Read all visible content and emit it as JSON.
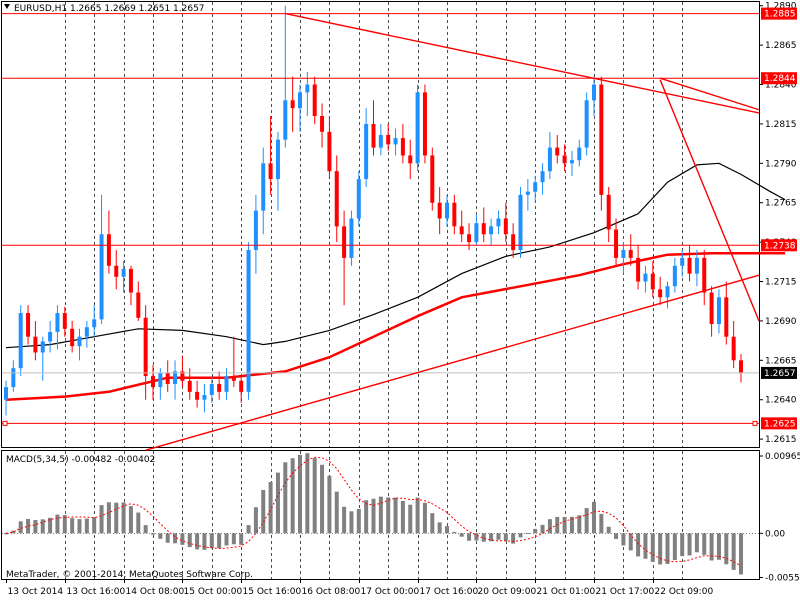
{
  "chart_data": {
    "type": "candlestick",
    "platform": "MetaTrader",
    "copyright": "MetaTrader, © 2001-2014, MetaQuotes Software Corp.",
    "price_panel": {
      "symbol_line": "EURUSD,H1  1.2665 1.2669 1.2651 1.2657",
      "ylim": [
        1.261,
        1.2893
      ],
      "y_ticks": [
        {
          "value": 1.289,
          "label": "1.2890"
        },
        {
          "value": 1.2865,
          "label": "1.2865"
        },
        {
          "value": 1.284,
          "label": "1.2840"
        },
        {
          "value": 1.2815,
          "label": "1.2815"
        },
        {
          "value": 1.279,
          "label": "1.2790"
        },
        {
          "value": 1.2765,
          "label": "1.2765"
        },
        {
          "value": 1.274,
          "label": "1.2740"
        },
        {
          "value": 1.2715,
          "label": "1.2715"
        },
        {
          "value": 1.269,
          "label": "1.2690"
        },
        {
          "value": 1.2665,
          "label": "1.2665"
        },
        {
          "value": 1.264,
          "label": "1.2640"
        },
        {
          "value": 1.2615,
          "label": "1.2615"
        }
      ],
      "horizontal_lines": [
        {
          "value": 1.2885,
          "label": "1.2885"
        },
        {
          "value": 1.2844,
          "label": "1.2844"
        },
        {
          "value": 1.2738,
          "label": "1.2738"
        },
        {
          "value": 1.2625,
          "label": "1.2625"
        }
      ],
      "current_price": {
        "value": 1.2657,
        "label": "1.2657"
      },
      "trend_lines": [
        {
          "from": [
            38,
            1.2885
          ],
          "to": [
            123,
            1.2822
          ]
        },
        {
          "from": [
            89,
            1.2844
          ],
          "to": [
            123,
            1.2824
          ]
        },
        {
          "from": [
            89,
            1.2843
          ],
          "to": [
            123,
            1.269
          ]
        },
        {
          "from": [
            19,
            1.2608
          ],
          "to": [
            123,
            1.2719
          ]
        }
      ],
      "moving_averages": [
        {
          "name": "",
          "color": "#000000",
          "width": 1.2,
          "points": [
            [
              0,
              1.2673
            ],
            [
              6,
              1.2675
            ],
            [
              12,
              1.268
            ],
            [
              18,
              1.2685
            ],
            [
              24,
              1.2684
            ],
            [
              30,
              1.268
            ],
            [
              35,
              1.2675
            ],
            [
              38,
              1.2677
            ],
            [
              44,
              1.2684
            ],
            [
              50,
              1.2694
            ],
            [
              56,
              1.2705
            ],
            [
              62,
              1.272
            ],
            [
              68,
              1.2731
            ],
            [
              74,
              1.2737
            ],
            [
              80,
              1.2746
            ],
            [
              86,
              1.2758
            ],
            [
              90,
              1.2778
            ],
            [
              94,
              1.2789
            ],
            [
              97,
              1.279
            ],
            [
              100,
              1.2783
            ],
            [
              104,
              1.2772
            ],
            [
              106,
              1.2767
            ]
          ]
        },
        {
          "name": "",
          "color": "#ff0000",
          "width": 2.5,
          "points": [
            [
              0,
              1.264
            ],
            [
              8,
              1.2642
            ],
            [
              14,
              1.2645
            ],
            [
              22,
              1.2654
            ],
            [
              30,
              1.2654
            ],
            [
              38,
              1.2658
            ],
            [
              44,
              1.2667
            ],
            [
              50,
              1.268
            ],
            [
              56,
              1.2693
            ],
            [
              62,
              1.2705
            ],
            [
              70,
              1.2712
            ],
            [
              78,
              1.2719
            ],
            [
              84,
              1.2726
            ],
            [
              90,
              1.2732
            ],
            [
              96,
              1.2733
            ],
            [
              102,
              1.2733
            ],
            [
              106,
              1.2733
            ]
          ]
        }
      ],
      "ohlc": [
        [
          1.264,
          1.2652,
          1.263,
          1.2648
        ],
        [
          1.2648,
          1.2665,
          1.2645,
          1.266
        ],
        [
          1.266,
          1.27,
          1.2655,
          1.2695
        ],
        [
          1.2695,
          1.27,
          1.2675,
          1.268
        ],
        [
          1.268,
          1.269,
          1.2665,
          1.267
        ],
        [
          1.267,
          1.268,
          1.2652,
          1.2677
        ],
        [
          1.2677,
          1.269,
          1.267,
          1.2683
        ],
        [
          1.2683,
          1.27,
          1.2672,
          1.2695
        ],
        [
          1.2695,
          1.2699,
          1.268,
          1.2685
        ],
        [
          1.2685,
          1.269,
          1.267,
          1.2674
        ],
        [
          1.2674,
          1.2685,
          1.2665,
          1.268
        ],
        [
          1.268,
          1.269,
          1.2673,
          1.2686
        ],
        [
          1.2686,
          1.27,
          1.268,
          1.2691
        ],
        [
          1.2691,
          1.277,
          1.2688,
          1.2745
        ],
        [
          1.2745,
          1.276,
          1.272,
          1.2725
        ],
        [
          1.2725,
          1.2735,
          1.271,
          1.2718
        ],
        [
          1.2718,
          1.2728,
          1.2708,
          1.2723
        ],
        [
          1.2723,
          1.2725,
          1.27,
          1.2708
        ],
        [
          1.2708,
          1.2715,
          1.269,
          1.2692
        ],
        [
          1.2692,
          1.27,
          1.264,
          1.2655
        ],
        [
          1.2655,
          1.2662,
          1.264,
          1.2648
        ],
        [
          1.2648,
          1.266,
          1.264,
          1.2657
        ],
        [
          1.2657,
          1.2665,
          1.2645,
          1.265
        ],
        [
          1.265,
          1.2665,
          1.264,
          1.2658
        ],
        [
          1.2658,
          1.2668,
          1.2648,
          1.2652
        ],
        [
          1.2652,
          1.266,
          1.264,
          1.2645
        ],
        [
          1.2645,
          1.2652,
          1.2635,
          1.264
        ],
        [
          1.264,
          1.265,
          1.2632,
          1.2643
        ],
        [
          1.2643,
          1.2655,
          1.2638,
          1.265
        ],
        [
          1.265,
          1.2658,
          1.264,
          1.2645
        ],
        [
          1.2645,
          1.266,
          1.264,
          1.2655
        ],
        [
          1.2655,
          1.268,
          1.2648,
          1.2652
        ],
        [
          1.2652,
          1.2655,
          1.2638,
          1.2645
        ],
        [
          1.2645,
          1.274,
          1.264,
          1.2735
        ],
        [
          1.2735,
          1.277,
          1.272,
          1.276
        ],
        [
          1.276,
          1.28,
          1.2745,
          1.279
        ],
        [
          1.279,
          1.282,
          1.277,
          1.278
        ],
        [
          1.278,
          1.281,
          1.276,
          1.2805
        ],
        [
          1.2805,
          1.289,
          1.28,
          1.283
        ],
        [
          1.283,
          1.2845,
          1.281,
          1.2825
        ],
        [
          1.2825,
          1.284,
          1.281,
          1.2835
        ],
        [
          1.2835,
          1.2848,
          1.282,
          1.284
        ],
        [
          1.284,
          1.2845,
          1.2815,
          1.282
        ],
        [
          1.282,
          1.2828,
          1.28,
          1.281
        ],
        [
          1.281,
          1.282,
          1.278,
          1.2785
        ],
        [
          1.2785,
          1.2795,
          1.274,
          1.275
        ],
        [
          1.275,
          1.276,
          1.27,
          1.273
        ],
        [
          1.273,
          1.276,
          1.2725,
          1.2755
        ],
        [
          1.2755,
          1.2785,
          1.275,
          1.278
        ],
        [
          1.278,
          1.2825,
          1.2775,
          1.2815
        ],
        [
          1.2815,
          1.283,
          1.2795,
          1.28
        ],
        [
          1.28,
          1.2815,
          1.2795,
          1.2808
        ],
        [
          1.2808,
          1.2815,
          1.2798,
          1.2802
        ],
        [
          1.2802,
          1.2812,
          1.2795,
          1.2806
        ],
        [
          1.2806,
          1.2815,
          1.279,
          1.2795
        ],
        [
          1.2795,
          1.2805,
          1.278,
          1.279
        ],
        [
          1.279,
          1.284,
          1.2785,
          1.2835
        ],
        [
          1.2835,
          1.284,
          1.279,
          1.2795
        ],
        [
          1.2795,
          1.28,
          1.276,
          1.2765
        ],
        [
          1.2765,
          1.2775,
          1.2745,
          1.2755
        ],
        [
          1.2755,
          1.277,
          1.275,
          1.2765
        ],
        [
          1.2765,
          1.277,
          1.2745,
          1.275
        ],
        [
          1.275,
          1.276,
          1.274,
          1.2745
        ],
        [
          1.2745,
          1.2752,
          1.2735,
          1.274
        ],
        [
          1.274,
          1.2758,
          1.2738,
          1.2752
        ],
        [
          1.2752,
          1.2762,
          1.274,
          1.2745
        ],
        [
          1.2745,
          1.2755,
          1.2738,
          1.275
        ],
        [
          1.275,
          1.276,
          1.2745,
          1.2755
        ],
        [
          1.2755,
          1.2765,
          1.274,
          1.2745
        ],
        [
          1.2745,
          1.2752,
          1.273,
          1.2735
        ],
        [
          1.2735,
          1.2775,
          1.273,
          1.277
        ],
        [
          1.277,
          1.278,
          1.276,
          1.2772
        ],
        [
          1.2772,
          1.2782,
          1.2765,
          1.2778
        ],
        [
          1.2778,
          1.279,
          1.277,
          1.2785
        ],
        [
          1.2785,
          1.281,
          1.278,
          1.28
        ],
        [
          1.28,
          1.2808,
          1.279,
          1.2795
        ],
        [
          1.2795,
          1.2802,
          1.2785,
          1.279
        ],
        [
          1.279,
          1.2798,
          1.2782,
          1.2792
        ],
        [
          1.2792,
          1.2805,
          1.2788,
          1.28
        ],
        [
          1.28,
          1.2835,
          1.2795,
          1.283
        ],
        [
          1.283,
          1.2845,
          1.282,
          1.284
        ],
        [
          1.284,
          1.2845,
          1.276,
          1.277
        ],
        [
          1.277,
          1.2775,
          1.274,
          1.2748
        ],
        [
          1.2748,
          1.2755,
          1.2725,
          1.273
        ],
        [
          1.273,
          1.274,
          1.272,
          1.2735
        ],
        [
          1.2735,
          1.2745,
          1.2725,
          1.273
        ],
        [
          1.273,
          1.2738,
          1.271,
          1.2715
        ],
        [
          1.2715,
          1.2725,
          1.2708,
          1.272
        ],
        [
          1.272,
          1.2728,
          1.2705,
          1.271
        ],
        [
          1.271,
          1.2718,
          1.27,
          1.2705
        ],
        [
          1.2705,
          1.2715,
          1.2698,
          1.2712
        ],
        [
          1.2712,
          1.273,
          1.2708,
          1.2725
        ],
        [
          1.2725,
          1.2735,
          1.2718,
          1.273
        ],
        [
          1.273,
          1.2738,
          1.2715,
          1.272
        ],
        [
          1.272,
          1.2735,
          1.2712,
          1.273
        ],
        [
          1.273,
          1.2735,
          1.27,
          1.2708
        ],
        [
          1.2708,
          1.2712,
          1.268,
          1.2688
        ],
        [
          1.2688,
          1.271,
          1.2682,
          1.2705
        ],
        [
          1.2705,
          1.2715,
          1.2675,
          1.268
        ],
        [
          1.268,
          1.269,
          1.266,
          1.2665
        ],
        [
          1.2665,
          1.2669,
          1.2651,
          1.2657
        ]
      ]
    },
    "macd_panel": {
      "label": "MACD(5,34,5) -0.00482 -0.00402",
      "ylim": [
        -0.0057,
        0.0104
      ],
      "y_ticks": [
        {
          "value": 0.00965,
          "label": "0.00965"
        },
        {
          "value": 0.0,
          "label": "0.00"
        },
        {
          "value": -0.00551,
          "label": "-0.00551"
        }
      ],
      "signal_color": "#ff0000",
      "histogram_color": "#808080"
    },
    "x_ticks": [
      {
        "index": 0,
        "label": "13 Oct 2014"
      },
      {
        "index": 8,
        "label": "13 Oct 16:00"
      },
      {
        "index": 16,
        "label": "14 Oct 08:00"
      },
      {
        "index": 24,
        "label": "15 Oct 00:00"
      },
      {
        "index": 32,
        "label": "15 Oct 16:00"
      },
      {
        "index": 40,
        "label": "16 Oct 08:00"
      },
      {
        "index": 48,
        "label": "17 Oct 00:00"
      },
      {
        "index": 56,
        "label": "17 Oct 16:00"
      },
      {
        "index": 64,
        "label": "20 Oct 09:00"
      },
      {
        "index": 72,
        "label": "21 Oct 01:00"
      },
      {
        "index": 80,
        "label": "21 Oct 17:00"
      },
      {
        "index": 88,
        "label": "22 Oct 09:00"
      }
    ],
    "vertical_grid_indices": [
      12,
      20,
      28,
      36,
      44,
      52,
      60,
      68,
      76,
      84,
      92
    ],
    "colors": {
      "bull": "#1e90ff",
      "bear": "#ff0000",
      "levels": "#ff0000",
      "current_price_tag": "#000000"
    },
    "grid": true
  }
}
